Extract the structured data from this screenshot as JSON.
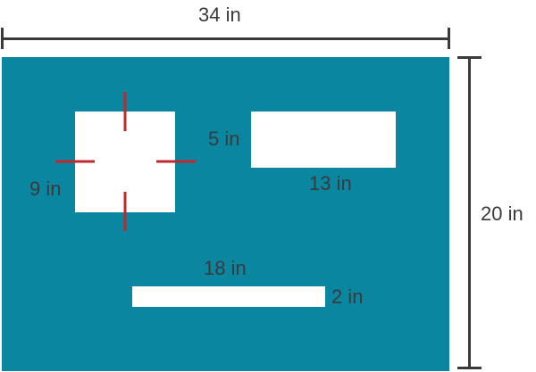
{
  "labels": {
    "width": "34 in",
    "height": "20 in",
    "square_cutout_side": "9 in",
    "rect_cutout_height": "5 in",
    "rect_cutout_width": "13 in",
    "strip_cutout_width": "18 in",
    "strip_cutout_height": "2 in"
  },
  "colors": {
    "board": "#0a86a1",
    "cutout": "#ffffff",
    "dimension_lines": "#3a3a3a",
    "crosshair_marks": "#c0282c",
    "text": "#3a3a3a"
  }
}
